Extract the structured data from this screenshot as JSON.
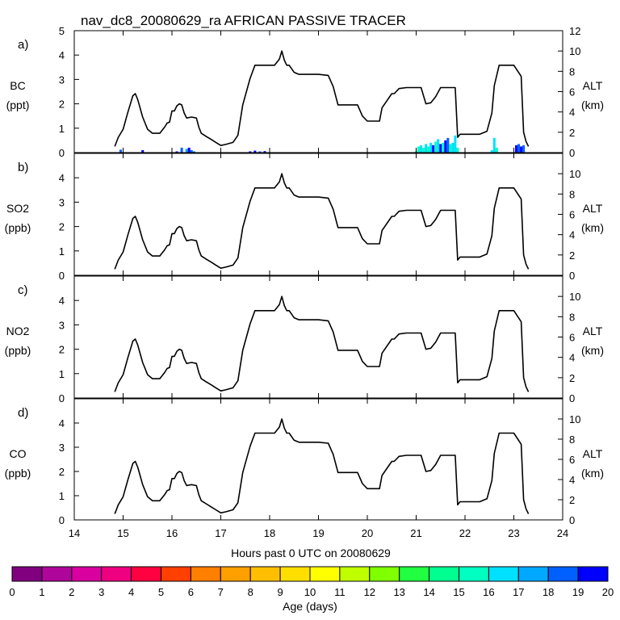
{
  "title": "nav_dc8_20080629_ra AFRICAN PASSIVE TRACER",
  "x_axis_label": "Hours past 0 UTC on 20080629",
  "colorbar": {
    "label": "Age (days)",
    "tick_labels": [
      "0",
      "1",
      "2",
      "3",
      "4",
      "5",
      "6",
      "7",
      "8",
      "9",
      "10",
      "11",
      "12",
      "13",
      "14",
      "15",
      "16",
      "17",
      "18",
      "19",
      "20"
    ],
    "colors": [
      "#800080",
      "#b0059a",
      "#d9009f",
      "#ee0080",
      "#ff0040",
      "#ff4000",
      "#ff7f00",
      "#ff9f00",
      "#ffbf00",
      "#ffdf00",
      "#ffff00",
      "#bfff00",
      "#80ff00",
      "#20ff40",
      "#00ff90",
      "#00ffc0",
      "#00e0ff",
      "#00a8ff",
      "#0060ff",
      "#0000ff",
      "#7000ff"
    ]
  },
  "panels": [
    {
      "letter": "a)",
      "species": "BC",
      "unit": "(ppt)",
      "alt_label": "ALT",
      "alt_unit": "(km)"
    },
    {
      "letter": "b)",
      "species": "SO2",
      "unit": "(ppb)",
      "alt_label": "ALT",
      "alt_unit": "(km)"
    },
    {
      "letter": "c)",
      "species": "NO2",
      "unit": "(ppb)",
      "alt_label": "ALT",
      "alt_unit": "(km)"
    },
    {
      "letter": "d)",
      "species": "CO",
      "unit": "(ppb)",
      "alt_label": "ALT",
      "alt_unit": "(km)"
    }
  ],
  "chart_data": [
    {
      "type": "line",
      "panel": "a",
      "title": "nav_dc8_20080629_ra AFRICAN PASSIVE TRACER",
      "xlabel": "Hours past 0 UTC on 20080629",
      "ylabel": "BC (ppt)",
      "y2label": "ALT (km)",
      "xlim": [
        14,
        24
      ],
      "x_ticks": [
        14,
        15,
        16,
        17,
        18,
        19,
        20,
        21,
        22,
        23,
        24
      ],
      "ylim": [
        0,
        5
      ],
      "y_ticks": [
        0,
        1,
        2,
        3,
        4,
        5
      ],
      "y2lim": [
        0,
        12
      ],
      "y2_ticks": [
        0,
        2,
        4,
        6,
        8,
        10,
        12
      ],
      "series": [
        {
          "values_note": "altitude",
          "x": [
            14.83,
            14.9,
            15.0,
            15.1,
            15.2,
            15.25,
            15.3,
            15.4,
            15.5,
            15.6,
            15.65,
            15.75,
            15.85,
            15.9,
            15.95,
            16.0,
            16.05,
            16.1,
            16.15,
            16.2,
            16.25,
            16.3,
            16.4,
            16.5,
            16.55,
            16.6,
            16.7,
            16.8,
            16.9,
            17.0,
            17.1,
            17.25,
            17.35,
            17.45,
            17.6,
            17.7,
            17.8,
            17.9,
            18.0,
            18.1,
            18.2,
            18.25,
            18.3,
            18.35,
            18.4,
            18.5,
            18.6,
            18.7,
            18.8,
            19.0,
            19.2,
            19.3,
            19.4,
            19.6,
            19.8,
            19.9,
            20.0,
            20.1,
            20.25,
            20.3,
            20.5,
            20.55,
            20.65,
            20.8,
            21.0,
            21.1,
            21.2,
            21.3,
            21.4,
            21.5,
            21.6,
            21.8,
            21.85,
            21.9,
            22.0,
            22.2,
            22.3,
            22.45,
            22.55,
            22.6,
            22.7,
            22.8,
            22.9,
            23.0,
            23.15,
            23.2,
            23.25,
            23.3
          ],
          "y": [
            0.6,
            1.5,
            2.3,
            4.0,
            5.6,
            5.8,
            5.2,
            3.5,
            2.3,
            1.9,
            1.9,
            1.9,
            2.5,
            2.9,
            3.0,
            4.1,
            4.1,
            4.6,
            4.8,
            4.7,
            3.9,
            3.4,
            3.5,
            3.4,
            2.5,
            1.9,
            1.6,
            1.3,
            1.0,
            0.7,
            0.8,
            1.0,
            1.7,
            4.7,
            7.3,
            8.6,
            8.6,
            8.6,
            8.6,
            8.6,
            9.2,
            10.0,
            9.1,
            8.6,
            8.6,
            7.9,
            7.7,
            7.7,
            7.7,
            7.7,
            7.6,
            6.5,
            4.7,
            4.7,
            4.7,
            3.6,
            3.1,
            3.1,
            3.1,
            4.4,
            5.8,
            5.8,
            6.3,
            6.4,
            6.4,
            6.4,
            4.8,
            4.9,
            5.5,
            6.4,
            6.4,
            6.4,
            1.5,
            1.8,
            1.8,
            1.8,
            1.8,
            2.1,
            3.9,
            6.6,
            8.6,
            8.6,
            8.6,
            8.6,
            7.5,
            2.0,
            1.1,
            0.6
          ]
        },
        {
          "values_note": "tracer BC",
          "x": [
            14.9,
            14.95,
            15.0,
            15.15,
            15.3,
            15.4,
            15.55,
            15.6,
            15.8,
            16.0,
            16.1,
            16.2,
            16.3,
            16.35,
            16.4,
            16.45,
            16.5,
            16.6,
            16.9,
            17.0,
            17.5,
            17.6,
            17.7,
            17.8,
            17.9,
            18.0,
            18.1,
            19.0,
            19.5,
            20.0,
            20.5,
            20.9,
            21.0,
            21.05,
            21.1,
            21.15,
            21.2,
            21.25,
            21.3,
            21.35,
            21.4,
            21.45,
            21.5,
            21.55,
            21.6,
            21.65,
            21.7,
            21.75,
            21.8,
            21.85,
            21.9,
            22.0,
            22.3,
            22.5,
            22.55,
            22.6,
            22.65,
            22.7,
            23.0,
            23.05,
            23.1,
            23.15,
            23.2,
            23.3
          ],
          "y": [
            0,
            0.12,
            0,
            0,
            0,
            0.1,
            0,
            0,
            0,
            0,
            0.05,
            0.2,
            0.15,
            0.2,
            0.1,
            0.05,
            0,
            0,
            0,
            0,
            0,
            0.05,
            0.08,
            0.05,
            0.06,
            0,
            0,
            0,
            0,
            0,
            0,
            0,
            0.05,
            0.25,
            0.3,
            0.2,
            0.35,
            0.25,
            0.4,
            0.3,
            0.45,
            0.55,
            0.35,
            0.4,
            0.5,
            0.6,
            0.35,
            0.4,
            0.7,
            0.2,
            0,
            0,
            0,
            0,
            0.1,
            0.6,
            0.2,
            0,
            0,
            0.3,
            0.35,
            0.25,
            0.3,
            0
          ],
          "age_days": [
            0,
            18,
            0,
            0,
            0,
            19,
            0,
            0,
            0,
            0,
            19,
            18,
            17,
            19,
            18,
            18,
            0,
            0,
            0,
            0,
            0,
            19,
            19,
            18,
            19,
            0,
            0,
            0,
            0,
            0,
            0,
            0,
            16,
            15,
            16,
            15,
            16,
            15,
            16,
            19,
            15,
            16,
            19,
            15,
            19,
            18,
            15,
            16,
            16,
            15,
            0,
            0,
            0,
            0,
            16,
            16,
            15,
            0,
            0,
            19,
            18,
            19,
            18,
            0
          ]
        }
      ]
    },
    {
      "type": "line",
      "panel": "b",
      "ylabel": "SO2 (ppb)",
      "y2label": "ALT (km)",
      "xlim": [
        14,
        24
      ],
      "x_ticks": [
        14,
        15,
        16,
        17,
        18,
        19,
        20,
        21,
        22,
        23,
        24
      ],
      "ylim": [
        0,
        5
      ],
      "y_ticks": [
        0,
        1,
        2,
        3,
        4
      ],
      "y2lim": [
        0,
        12
      ],
      "y2_ticks": [
        0,
        2,
        4,
        6,
        8,
        10
      ],
      "series": [
        {
          "values_note": "altitude (same flight track as panel a)"
        }
      ]
    },
    {
      "type": "line",
      "panel": "c",
      "ylabel": "NO2 (ppb)",
      "y2label": "ALT (km)",
      "xlim": [
        14,
        24
      ],
      "x_ticks": [
        14,
        15,
        16,
        17,
        18,
        19,
        20,
        21,
        22,
        23,
        24
      ],
      "ylim": [
        0,
        5
      ],
      "y_ticks": [
        0,
        1,
        2,
        3,
        4
      ],
      "y2lim": [
        0,
        12
      ],
      "y2_ticks": [
        0,
        2,
        4,
        6,
        8,
        10
      ],
      "series": [
        {
          "values_note": "altitude (same flight track as panel a)"
        }
      ]
    },
    {
      "type": "line",
      "panel": "d",
      "ylabel": "CO (ppb)",
      "y2label": "ALT (km)",
      "xlim": [
        14,
        24
      ],
      "x_ticks": [
        14,
        15,
        16,
        17,
        18,
        19,
        20,
        21,
        22,
        23,
        24
      ],
      "ylim": [
        0,
        5
      ],
      "y_ticks": [
        0,
        1,
        2,
        3,
        4
      ],
      "y2lim": [
        0,
        12
      ],
      "y2_ticks": [
        0,
        2,
        4,
        6,
        8,
        10
      ],
      "series": [
        {
          "values_note": "altitude (same flight track as panel a)"
        }
      ]
    }
  ]
}
